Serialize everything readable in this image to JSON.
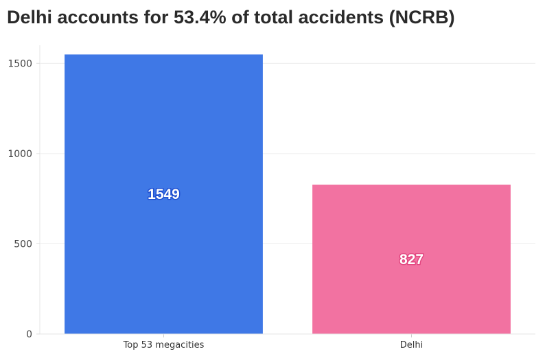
{
  "chart_data": {
    "type": "bar",
    "title": "Delhi accounts for 53.4% of total accidents (NCRB)",
    "categories": [
      "Top 53 megacities",
      "Delhi"
    ],
    "values": [
      1549,
      827
    ],
    "colors": [
      "#3f78e6",
      "#f272a1"
    ],
    "label_outline_colors": [
      "#1f4fd0",
      "#e2457f"
    ],
    "ylim": [
      0,
      1600
    ],
    "yticks": [
      0,
      500,
      1000,
      1500
    ],
    "xlabel": "",
    "ylabel": "",
    "grid": true,
    "legend": "none"
  }
}
